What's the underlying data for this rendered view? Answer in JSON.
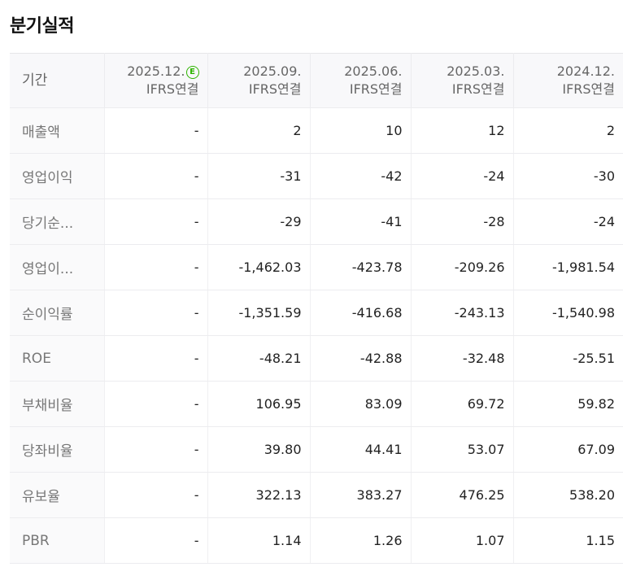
{
  "section_title": "분기실적",
  "header_label": "기간",
  "columns": [
    {
      "date": "2025.12.",
      "basis": "IFRS연결",
      "estimate": true,
      "estimate_badge": "E"
    },
    {
      "date": "2025.09.",
      "basis": "IFRS연결",
      "estimate": false
    },
    {
      "date": "2025.06.",
      "basis": "IFRS연결",
      "estimate": false
    },
    {
      "date": "2025.03.",
      "basis": "IFRS연결",
      "estimate": false
    },
    {
      "date": "2024.12.",
      "basis": "IFRS연결",
      "estimate": false
    }
  ],
  "rows": [
    {
      "label": "매출액",
      "values": [
        "-",
        "2",
        "10",
        "12",
        "2"
      ]
    },
    {
      "label": "영업이익",
      "values": [
        "-",
        "-31",
        "-42",
        "-24",
        "-30"
      ]
    },
    {
      "label": "당기순...",
      "values": [
        "-",
        "-29",
        "-41",
        "-28",
        "-24"
      ]
    },
    {
      "label": "영업이...",
      "values": [
        "-",
        "-1,462.03",
        "-423.78",
        "-209.26",
        "-1,981.54"
      ]
    },
    {
      "label": "순이익률",
      "values": [
        "-",
        "-1,351.59",
        "-416.68",
        "-243.13",
        "-1,540.98"
      ]
    },
    {
      "label": "ROE",
      "values": [
        "-",
        "-48.21",
        "-42.88",
        "-32.48",
        "-25.51"
      ]
    },
    {
      "label": "부채비율",
      "values": [
        "-",
        "106.95",
        "83.09",
        "69.72",
        "59.82"
      ]
    },
    {
      "label": "당좌비율",
      "values": [
        "-",
        "39.80",
        "44.41",
        "53.07",
        "67.09"
      ]
    },
    {
      "label": "유보율",
      "values": [
        "-",
        "322.13",
        "383.27",
        "476.25",
        "538.20"
      ]
    },
    {
      "label": "PBR",
      "values": [
        "-",
        "1.14",
        "1.26",
        "1.07",
        "1.15"
      ]
    }
  ],
  "colors": {
    "estimate_badge": "#2db400",
    "header_bg": "#f8f8fa",
    "border": "#ececef"
  }
}
